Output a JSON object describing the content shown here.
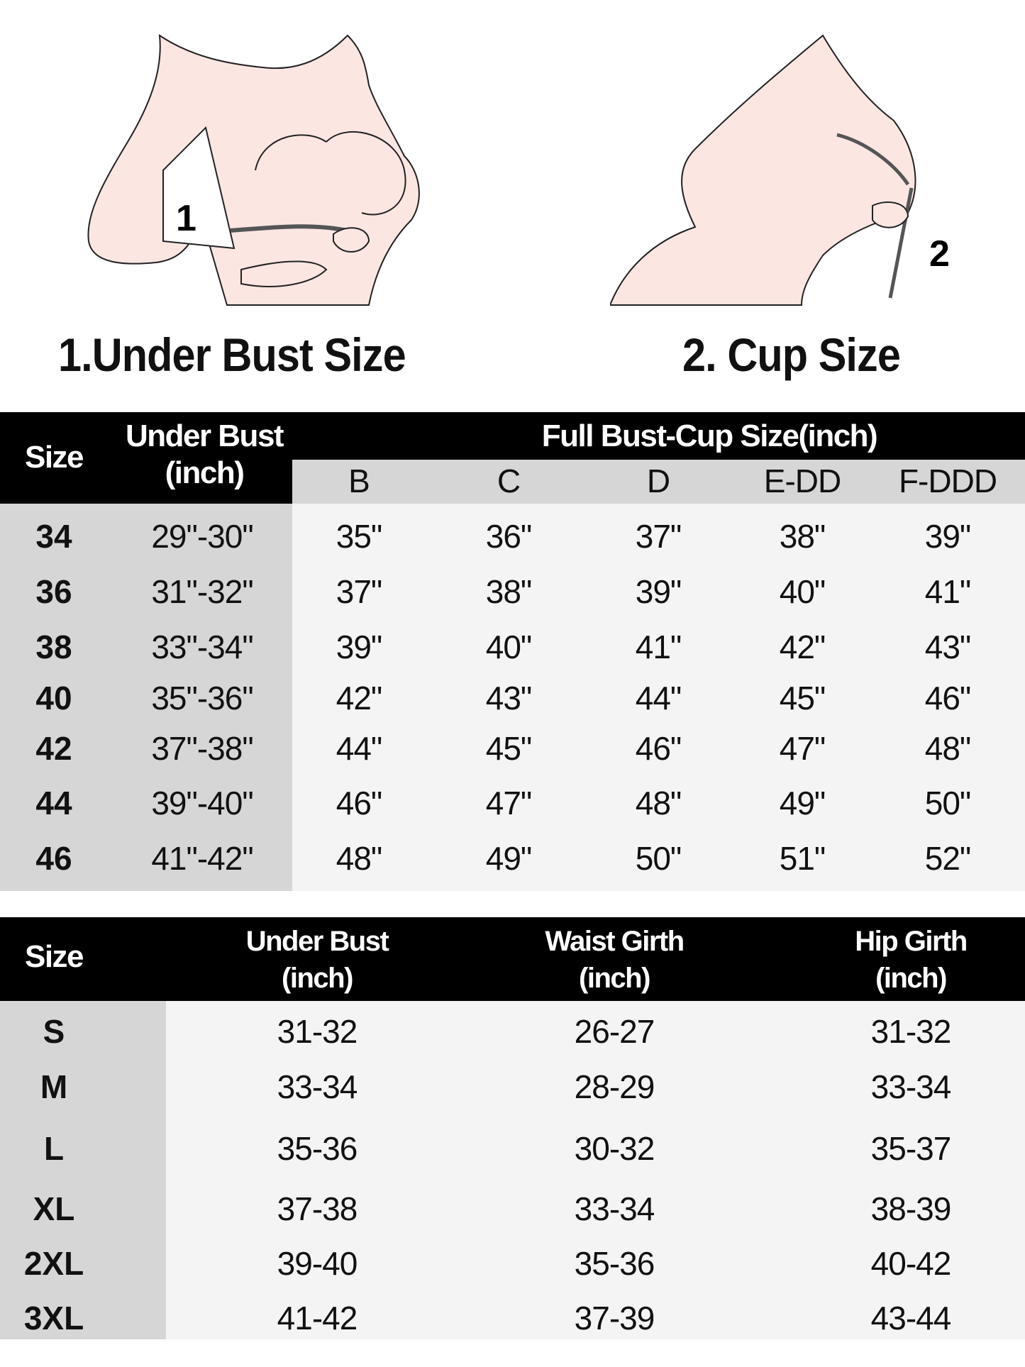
{
  "illustrations": [
    {
      "label": "1.Under Bust Size",
      "badge": "1",
      "icon": "under-bust-measure-illustration"
    },
    {
      "label": "2. Cup Size",
      "badge": "2",
      "icon": "cup-size-measure-illustration"
    }
  ],
  "colors": {
    "header": "#000000",
    "size_column": "#d6d6d6",
    "body": "#f4f4f4",
    "skin": "#fbe6e2"
  },
  "bra_table": {
    "size_header": "Size",
    "under_bust_header": [
      "Under Bust",
      "(inch)"
    ],
    "full_bust_header": "Full Bust-Cup Size(inch)",
    "cups": [
      "B",
      "C",
      "D",
      "E-DD",
      "F-DDD"
    ],
    "rows": [
      {
        "size": "34",
        "under_bust": "29\"-30\"",
        "cups": [
          "35\"",
          "36\"",
          "37\"",
          "38\"",
          "39\""
        ]
      },
      {
        "size": "36",
        "under_bust": "31\"-32\"",
        "cups": [
          "37\"",
          "38\"",
          "39\"",
          "40\"",
          "41\""
        ]
      },
      {
        "size": "38",
        "under_bust": "33\"-34\"",
        "cups": [
          "39\"",
          "40\"",
          "41\"",
          "42\"",
          "43\""
        ]
      },
      {
        "size": "40",
        "under_bust": "35\"-36\"",
        "cups": [
          "42\"",
          "43\"",
          "44\"",
          "45\"",
          "46\""
        ]
      },
      {
        "size": "42",
        "under_bust": "37\"-38\"",
        "cups": [
          "44\"",
          "45\"",
          "46\"",
          "47\"",
          "48\""
        ]
      },
      {
        "size": "44",
        "under_bust": "39\"-40\"",
        "cups": [
          "46\"",
          "47\"",
          "48\"",
          "49\"",
          "50\""
        ]
      },
      {
        "size": "46",
        "under_bust": "41\"-42\"",
        "cups": [
          "48\"",
          "49\"",
          "50\"",
          "51\"",
          "52\""
        ]
      }
    ]
  },
  "letter_table": {
    "headers": [
      [
        "Size"
      ],
      [
        "Under Bust",
        "(inch)"
      ],
      [
        "Waist Girth",
        "(inch)"
      ],
      [
        "Hip Girth",
        "(inch)"
      ]
    ],
    "rows": [
      [
        "S",
        "31-32",
        "26-27",
        "31-32"
      ],
      [
        "M",
        "33-34",
        "28-29",
        "33-34"
      ],
      [
        "L",
        "35-36",
        "30-32",
        "35-37"
      ],
      [
        "XL",
        "37-38",
        "33-34",
        "38-39"
      ],
      [
        "2XL",
        "39-40",
        "35-36",
        "40-42"
      ],
      [
        "3XL",
        "41-42",
        "37-39",
        "43-44"
      ]
    ]
  }
}
